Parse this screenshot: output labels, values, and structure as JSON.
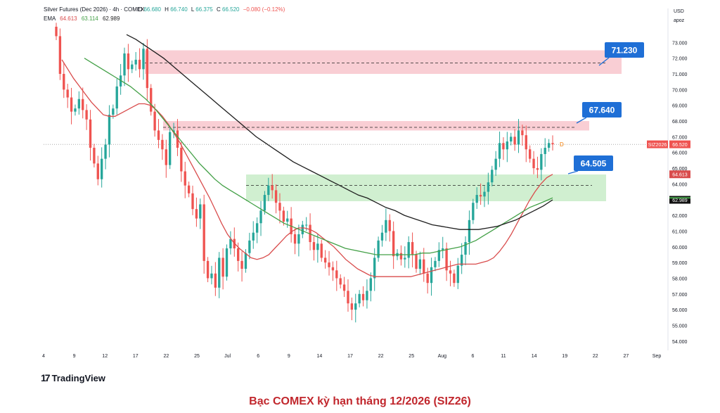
{
  "header": {
    "symbol_line": "Silver Futures (Dec 2026) · 4h · COMEX",
    "ohlc": {
      "o_label": "O",
      "o": "66.680",
      "h_label": "H",
      "h": "66.740",
      "l_label": "L",
      "l": "66.375",
      "c_label": "C",
      "c": "66.520",
      "chg": "−0.080 (−0.12%)"
    },
    "ema_label": "EMA",
    "ema_values": [
      "64.613",
      "63.114",
      "62.989"
    ]
  },
  "axis": {
    "currency": "USD",
    "sub": "apoz"
  },
  "price_tags": {
    "symbol": "SIZ2026",
    "last": "66.520",
    "ema_fast": "64.613",
    "ema_slow": "62.989"
  },
  "callouts": [
    "71.230",
    "67.640",
    "64.505"
  ],
  "branding": {
    "mark": "17",
    "name": "TradingView"
  },
  "caption": "Bạc COMEX kỳ hạn tháng 12/2026 (SIZ26)",
  "colors": {
    "up": "#26a69a",
    "down": "#ef5350",
    "ema_fast": "#d94c4c",
    "ema_mid": "#43a047",
    "ema_slow": "#1e1e1e",
    "resistance_zone": "#f8c6cc",
    "support_zone": "#c8ecc8",
    "callout": "#1f6fd6",
    "caption": "#c1272d"
  },
  "chart_data": {
    "type": "candlestick",
    "ylim": [
      53.5,
      74.0
    ],
    "ylabels": [
      "73.000",
      "72.000",
      "71.000",
      "70.000",
      "69.000",
      "68.000",
      "67.000",
      "66.000",
      "65.000",
      "64.000",
      "63.000",
      "62.000",
      "61.000",
      "60.000",
      "59.000",
      "58.000",
      "57.000",
      "56.000",
      "55.000",
      "54.000"
    ],
    "xlabels": [
      "4",
      "9",
      "12",
      "17",
      "22",
      "25",
      "Jul",
      "6",
      "9",
      "14",
      "17",
      "22",
      "25",
      "Aug",
      "6",
      "11",
      "14",
      "19",
      "22",
      "27",
      "Sep"
    ],
    "zones": [
      {
        "kind": "resistance",
        "from": 71.0,
        "to": 72.5,
        "mid": 71.7,
        "callout": 71.23
      },
      {
        "kind": "resistance",
        "from": 67.4,
        "to": 68.0,
        "mid": 67.6,
        "callout": 67.64
      },
      {
        "kind": "support",
        "from": 62.9,
        "to": 64.6,
        "mid": 63.9,
        "callout": 64.505
      }
    ],
    "last_price": 66.52,
    "closes": [
      73.4,
      71.0,
      70.0,
      69.5,
      68.6,
      68.8,
      69.4,
      68.7,
      68.1,
      66.3,
      65.3,
      64.3,
      65.6,
      66.5,
      68.4,
      68.8,
      70.2,
      70.9,
      72.3,
      71.3,
      71.6,
      71.9,
      71.3,
      72.6,
      70.1,
      68.6,
      67.4,
      66.8,
      66.2,
      65.2,
      67.3,
      67.4,
      66.3,
      64.8,
      63.9,
      63.4,
      62.4,
      61.8,
      62.7,
      59.1,
      58.0,
      58.3,
      57.4,
      59.3,
      58.1,
      59.9,
      60.5,
      59.9,
      59.1,
      58.6,
      59.6,
      60.4,
      60.9,
      61.5,
      62.3,
      63.3,
      63.9,
      63.6,
      62.8,
      62.3,
      61.6,
      61.8,
      60.8,
      60.2,
      60.8,
      61.4,
      61.4,
      60.3,
      59.8,
      60.2,
      59.3,
      59.0,
      58.7,
      58.5,
      58.0,
      57.6,
      57.2,
      56.4,
      56.0,
      56.4,
      57.0,
      56.6,
      57.2,
      58.0,
      59.3,
      60.4,
      60.9,
      61.7,
      61.0,
      59.4,
      59.6,
      59.2,
      59.3,
      60.3,
      59.5,
      58.6,
      59.2,
      58.3,
      57.7,
      58.7,
      59.1,
      59.8,
      59.9,
      58.5,
      58.3,
      57.7,
      58.8,
      59.5,
      60.3,
      61.7,
      62.8,
      63.3,
      63.2,
      63.5,
      64.1,
      64.9,
      65.6,
      66.6,
      66.2,
      66.7,
      67.0,
      66.5,
      67.4,
      67.1,
      66.2,
      65.6,
      65.0,
      64.9,
      65.9,
      66.3,
      66.6,
      66.52
    ],
    "ema_fast": [
      71.9,
      71.3,
      70.7,
      70.2,
      69.7,
      69.2,
      68.8,
      68.4,
      68.3,
      68.3,
      68.5,
      68.7,
      68.9,
      69.1,
      69.1,
      69.0,
      68.7,
      68.3,
      67.8,
      67.2,
      66.6,
      65.9,
      65.2,
      64.5,
      63.8,
      63.1,
      62.3,
      61.5,
      60.8,
      60.3,
      59.9,
      59.6,
      59.3,
      59.2,
      59.3,
      59.5,
      59.9,
      60.3,
      60.7,
      61.0,
      61.2,
      61.2,
      61.1,
      60.9,
      60.6,
      60.3,
      60.0,
      59.6,
      59.2,
      58.9,
      58.6,
      58.4,
      58.2,
      58.1,
      58.1,
      58.1,
      58.1,
      58.1,
      58.1,
      58.1,
      58.2,
      58.3,
      58.4,
      58.5,
      58.6,
      58.7,
      58.8,
      58.9,
      58.9,
      58.9,
      58.9,
      59.0,
      59.1,
      59.3,
      59.7,
      60.2,
      60.8,
      61.5,
      62.2,
      62.9,
      63.5,
      64.0,
      64.4,
      64.613
    ],
    "ema_mid": [
      72.0,
      71.7,
      71.4,
      71.1,
      70.8,
      70.5,
      70.2,
      69.8,
      69.4,
      68.9,
      68.3,
      67.7,
      67.1,
      66.5,
      65.9,
      65.3,
      64.8,
      64.3,
      63.9,
      63.6,
      63.3,
      63.0,
      62.7,
      62.4,
      62.1,
      61.8,
      61.5,
      61.3,
      61.1,
      60.9,
      60.7,
      60.5,
      60.3,
      60.1,
      59.9,
      59.8,
      59.7,
      59.6,
      59.5,
      59.5,
      59.5,
      59.5,
      59.5,
      59.5,
      59.6,
      59.6,
      59.7,
      59.8,
      59.9,
      60.0,
      60.2,
      60.4,
      60.7,
      61.0,
      61.3,
      61.6,
      61.9,
      62.2,
      62.5,
      62.7,
      62.9,
      63.114
    ],
    "ema_slow": [
      73.5,
      73.2,
      72.8,
      72.4,
      72.0,
      71.5,
      71.0,
      70.5,
      70.0,
      69.5,
      69.0,
      68.5,
      68.0,
      67.5,
      67.0,
      66.6,
      66.2,
      65.8,
      65.4,
      65.1,
      64.8,
      64.5,
      64.2,
      63.9,
      63.6,
      63.3,
      63.1,
      62.8,
      62.5,
      62.3,
      62.0,
      61.8,
      61.6,
      61.4,
      61.3,
      61.2,
      61.1,
      61.1,
      61.1,
      61.2,
      61.3,
      61.5,
      61.7,
      62.0,
      62.3,
      62.6,
      62.989
    ]
  }
}
